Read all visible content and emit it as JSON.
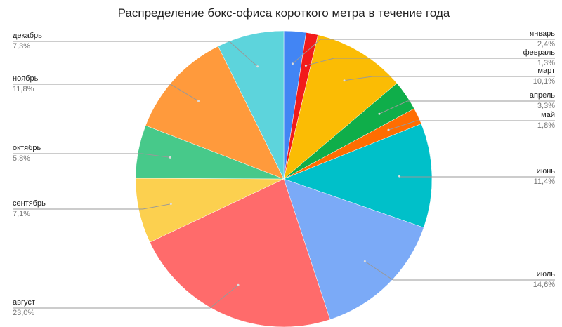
{
  "chart_data": {
    "type": "pie",
    "title": "Распределение бокс-офиса короткого метра в течение года",
    "categories": [
      "январь",
      "февраль",
      "март",
      "апрель",
      "май",
      "июнь",
      "июль",
      "август",
      "сентябрь",
      "октябрь",
      "ноябрь",
      "декабрь"
    ],
    "values": [
      2.4,
      1.3,
      10.1,
      3.3,
      1.8,
      11.4,
      14.6,
      23.0,
      7.1,
      5.8,
      11.8,
      7.3
    ],
    "value_labels": [
      "2,4%",
      "1,3%",
      "10,1%",
      "3,3%",
      "1,8%",
      "11,4%",
      "14,6%",
      "23,0%",
      "7,1%",
      "5,8%",
      "11,8%",
      "7,3%"
    ],
    "colors": [
      "#4285f4",
      "#f21b1b",
      "#fbbc04",
      "#0fae4a",
      "#ff6d01",
      "#00c0c9",
      "#7baaf7",
      "#ff6b6b",
      "#fcd04f",
      "#47c98a",
      "#ff9a3c",
      "#5dd4dc"
    ]
  }
}
